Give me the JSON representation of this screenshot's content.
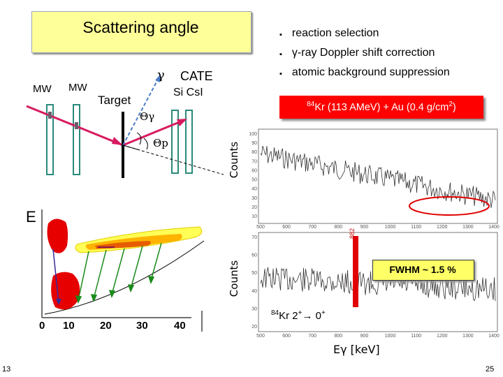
{
  "title": "Scattering angle",
  "bullets": [
    "reaction selection",
    "γ-ray Doppler shift correction",
    "atomic background suppression"
  ],
  "bullet_marker": "▪",
  "setup": {
    "mw1": "MW",
    "mw2": "MW",
    "target": "Target",
    "gamma": "γ",
    "theta_gamma": "Θγ",
    "theta_p": "Θp",
    "cate": "CATE",
    "si_csi": "Si CsI"
  },
  "reaction": {
    "isotope_mass": "84",
    "text": "Kr (113 AMeV) + Au (0.4 g/cm",
    "unit_exp": "2",
    "close": ")"
  },
  "spectrum_top": {
    "ylabel": "Counts",
    "yticks": [
      "100",
      "90",
      "80",
      "70",
      "60",
      "50",
      "40",
      "30",
      "20",
      "10"
    ],
    "xticks": [
      "500",
      "600",
      "700",
      "800",
      "900",
      "1000",
      "1100",
      "1200",
      "1300",
      "1400"
    ]
  },
  "spectrum_bottom": {
    "ylabel": "Counts",
    "yticks": [
      "70",
      "60",
      "50",
      "40",
      "30",
      "20"
    ],
    "xticks": [
      "500",
      "600",
      "700",
      "800",
      "900",
      "1000",
      "1100",
      "1200",
      "1300",
      "1400"
    ],
    "peak_label": "882",
    "fwhm": "FWHM ~ 1.5 %",
    "transition_mass": "84",
    "transition_el": "Kr",
    "transition_from": "2",
    "transition_plus1": "+",
    "arrow": "→",
    "transition_to": "0",
    "transition_plus2": "+"
  },
  "de_e_plot": {
    "axis_label": "E",
    "xticks": [
      "0",
      "10",
      "20",
      "30",
      "40"
    ]
  },
  "xaxis_label": "Eγ [keV]",
  "slide_left": "13",
  "slide_right": "25",
  "colors": {
    "title_bg": "#ffff99",
    "reaction_bg": "#ff0000",
    "fwhm_bg": "#ffff66",
    "detector": "#2a8a7a",
    "beam": "#d81b60",
    "gamma_line": "#4a7cc8",
    "spectrum_peak": "#e00000"
  }
}
